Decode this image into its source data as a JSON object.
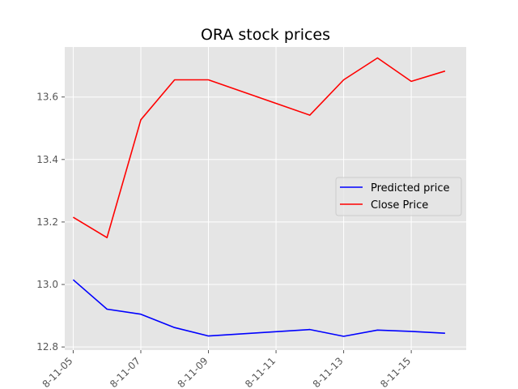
{
  "chart_data": {
    "type": "line",
    "title": "ORA stock prices",
    "xlabel": "",
    "ylabel": "",
    "x": [
      "2018-11-05",
      "2018-11-06",
      "2018-11-07",
      "2018-11-08",
      "2018-11-09",
      "2018-11-12",
      "2018-11-13",
      "2018-11-14",
      "2018-11-15",
      "2018-11-16"
    ],
    "x_ticks": [
      "2018-11-05",
      "2018-11-07",
      "2018-11-09",
      "2018-11-11",
      "2018-11-13",
      "2018-11-15"
    ],
    "x_tick_labels": [
      "8-11-05",
      "8-11-07",
      "8-11-09",
      "8-11-11",
      "8-11-13",
      "8-11-15"
    ],
    "xlim": [
      "2018-11-04 18:00",
      "2018-11-16 15:00"
    ],
    "y_ticks": [
      12.8,
      13.0,
      13.2,
      13.4,
      13.6
    ],
    "y_tick_labels": [
      "12.8",
      "13.0",
      "13.2",
      "13.4",
      "13.6"
    ],
    "ylim": [
      12.79,
      13.76
    ],
    "grid": true,
    "legend_position": "center-right",
    "series": [
      {
        "name": "Predicted price",
        "color": "#0000ff",
        "values": [
          13.015,
          12.921,
          12.905,
          12.862,
          12.835,
          12.856,
          12.834,
          12.854,
          12.85,
          12.844
        ]
      },
      {
        "name": "Close Price",
        "color": "#ff0000",
        "values": [
          13.215,
          13.15,
          13.527,
          13.655,
          13.655,
          13.542,
          13.655,
          13.725,
          13.65,
          13.683
        ]
      }
    ]
  }
}
